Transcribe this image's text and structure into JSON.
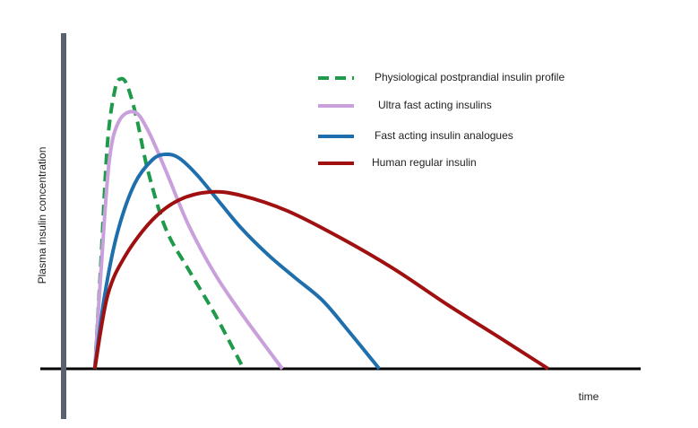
{
  "chart_data": {
    "type": "line",
    "y_label": "Plasma insulin concentration",
    "x_label": "time",
    "xlim": [
      0,
      100
    ],
    "ylim": [
      0,
      100
    ],
    "series": [
      {
        "name": "Physiological postprandial insulin profile",
        "color": "#1e9a4a",
        "dashed": true,
        "x": [
          5.4,
          6.4,
          7.6,
          8.9,
          9.9,
          11.0,
          12.6,
          14.6,
          17.7,
          21.6,
          26.2,
          31.2
        ],
        "values": [
          0,
          29.7,
          67.1,
          83.2,
          86.4,
          84.5,
          75.1,
          59.1,
          41.7,
          29.7,
          16.3,
          0
        ]
      },
      {
        "name": "Ultra fast acting insulins",
        "color": "#c9a0dc",
        "x": [
          5.4,
          6.5,
          7.9,
          9.6,
          12.3,
          14.6,
          17.7,
          21.6,
          26.2,
          30.9,
          37.9
        ],
        "values": [
          0,
          29.7,
          61.8,
          73.8,
          76.5,
          71.1,
          59.1,
          43.0,
          28.3,
          16.3,
          0
        ]
      },
      {
        "name": "Fast acting insulin analogues",
        "color": "#1f6fad",
        "x": [
          5.4,
          7.1,
          9.3,
          12.3,
          15.4,
          17.7,
          20.0,
          23.1,
          27.0,
          30.9,
          35.6,
          40.2,
          44.9,
          49.5,
          54.7
        ],
        "values": [
          0,
          21.7,
          40.4,
          55.1,
          62.3,
          63.9,
          62.8,
          57.8,
          49.7,
          41.7,
          33.7,
          27.0,
          20.3,
          11.0,
          0
        ]
      },
      {
        "name": "Human regular insulin",
        "color": "#a01010",
        "x": [
          5.4,
          7.6,
          10.7,
          15.4,
          20.0,
          25.5,
          30.9,
          38.7,
          48.0,
          57.3,
          66.6,
          76.0,
          84.0
        ],
        "values": [
          0,
          21.7,
          33.7,
          44.4,
          50.3,
          52.7,
          51.6,
          47.1,
          39.0,
          29.7,
          19.0,
          8.8,
          0
        ]
      }
    ]
  }
}
